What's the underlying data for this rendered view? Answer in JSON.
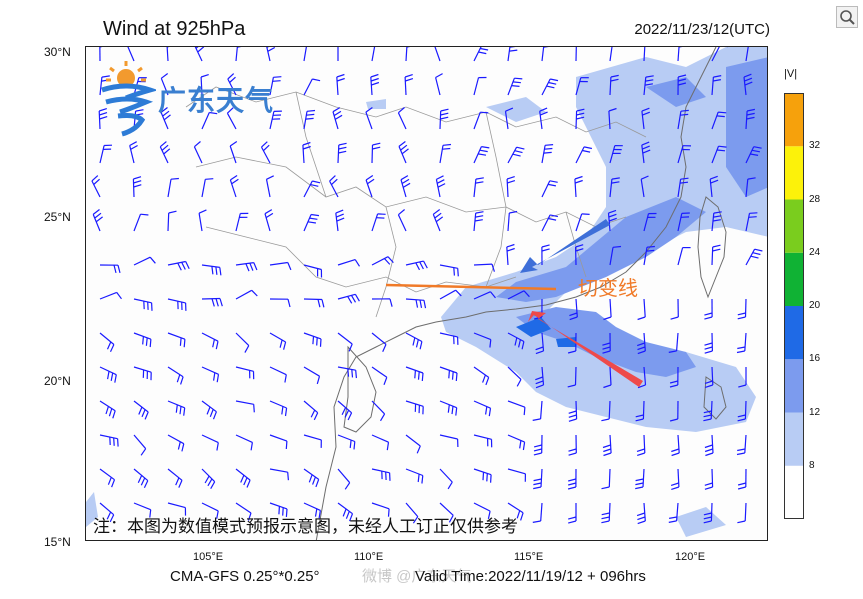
{
  "header": {
    "title": "Wind at 925hPa",
    "datetime": "2022/11/23/12(UTC)"
  },
  "logo": {
    "text": "广东天气"
  },
  "note": "注：本图为数值模式预报示意图，未经人工订正仅供参考",
  "footer": {
    "model": "CMA-GFS  0.25°*0.25°",
    "valid_time": "Valid Time:2022/11/19/12 + 096hrs",
    "watermark": "微博 @广东天气"
  },
  "annotation": {
    "label": "切变线"
  },
  "axes": {
    "lat_labels": [
      "30°N",
      "25°N",
      "20°N",
      "15°N"
    ],
    "lon_labels": [
      "105°E",
      "110°E",
      "115°E",
      "120°E"
    ]
  },
  "colorbar": {
    "title": "|V|",
    "labels": [
      "8",
      "12",
      "16",
      "20",
      "24",
      "28",
      "32"
    ],
    "colors": [
      "#ffffff",
      "#b8ccf4",
      "#7c9bee",
      "#1f6ae6",
      "#10b234",
      "#7acd1e",
      "#fcf20a",
      "#f6a10c"
    ]
  },
  "colors": {
    "barb": "#1a1aff",
    "shear_line": "#f07a28",
    "arrow_red": "#ee4a4a",
    "arrow_blue": "#3e6fd8"
  }
}
